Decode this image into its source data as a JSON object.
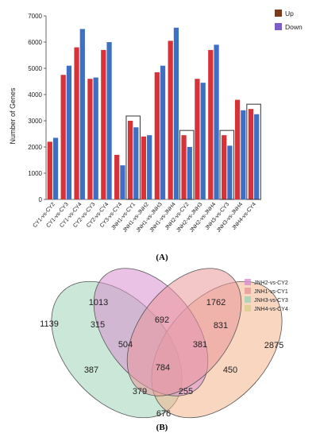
{
  "chart_data": [
    {
      "type": "bar",
      "panel_label": "(A)",
      "ylabel": "Number of Genes",
      "ylim": [
        0,
        7000
      ],
      "yticks": [
        0,
        1000,
        2000,
        3000,
        4000,
        5000,
        6000,
        7000
      ],
      "legend_placement": "top-right",
      "colors": {
        "up": "#d63238",
        "down": "#3e6fc2",
        "up_legend": "#7a3b1c",
        "down_legend": "#7b5fc7",
        "box": "#333333"
      },
      "categories": [
        "CY1-vs-CY2",
        "CY1-vs-CY3",
        "CY1-vs-CY4",
        "CY2-vs-CY3",
        "CY2-vs-CY4",
        "CY3-vs-CY4",
        "JNH1-vs-CY1",
        "JNH1-vs-JNH2",
        "JNH1-vs-JNH3",
        "JNH1-vs-JNH4",
        "JNH2-vs-CY2",
        "JNH2-vs-JNH3",
        "JNH2-vs-JNH4",
        "JNH3-vs-CY3",
        "JNH3-vs-JNH4",
        "JNH4-vs-CY4"
      ],
      "series": [
        {
          "name": "Up",
          "values": [
            2200,
            4750,
            5800,
            4600,
            5700,
            1700,
            3000,
            2400,
            4850,
            6050,
            2450,
            4600,
            5700,
            2450,
            3800,
            3450
          ]
        },
        {
          "name": "Down",
          "values": [
            2350,
            5100,
            6500,
            4650,
            6000,
            1300,
            2750,
            2450,
            5100,
            6550,
            2000,
            4450,
            5900,
            2050,
            3400,
            3250
          ]
        }
      ],
      "highlighted": [
        "JNH1-vs-CY1",
        "JNH2-vs-CY2",
        "JNH3-vs-CY3",
        "JNH4-vs-CY4"
      ]
    },
    {
      "type": "venn",
      "panel_label": "(B)",
      "sets": [
        {
          "name": "JNH2-vs-CY2",
          "color": "#d98fd0"
        },
        {
          "name": "JNH1-vs-CY1",
          "color": "#f0a78f"
        },
        {
          "name": "JNH3-vs-CY3",
          "color": "#9fd3b6"
        },
        {
          "name": "JNH4-vs-CY4",
          "color": "#e8cf8a"
        }
      ],
      "regions": [
        {
          "label": "1013",
          "value": 1013
        },
        {
          "label": "1762",
          "value": 1762
        },
        {
          "label": "1139",
          "value": 1139
        },
        {
          "label": "2875",
          "value": 2875
        },
        {
          "label": "315",
          "value": 315
        },
        {
          "label": "692",
          "value": 692
        },
        {
          "label": "831",
          "value": 831
        },
        {
          "label": "504",
          "value": 504
        },
        {
          "label": "381",
          "value": 381
        },
        {
          "label": "784",
          "value": 784
        },
        {
          "label": "387",
          "value": 387
        },
        {
          "label": "450",
          "value": 450
        },
        {
          "label": "379",
          "value": 379
        },
        {
          "label": "255",
          "value": 255
        },
        {
          "label": "676",
          "value": 676
        }
      ]
    }
  ]
}
